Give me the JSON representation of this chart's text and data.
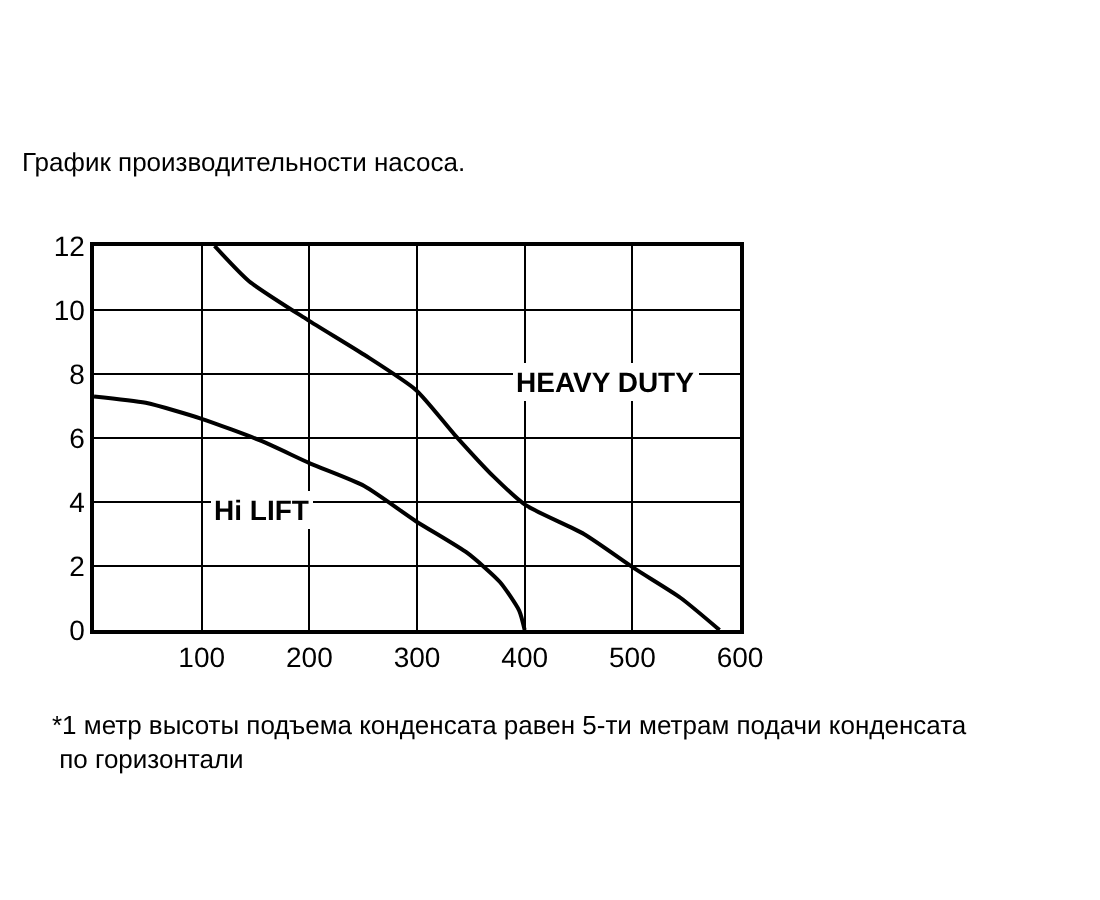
{
  "chart_data": {
    "type": "line",
    "title": "График производительности насоса.",
    "series": [
      {
        "name": "HEAVY DUTY",
        "color": "#000000",
        "x": [
          112,
          144,
          198,
          251,
          299,
          335,
          371,
          401,
          455,
          503,
          545,
          581
        ],
        "values": [
          12,
          10.9,
          9.7,
          8.6,
          7.5,
          6.1,
          4.8,
          3.9,
          3.0,
          1.9,
          1.0,
          0
        ]
      },
      {
        "name": "Hi LIFT",
        "color": "#000000",
        "x": [
          0,
          48,
          100,
          156,
          201,
          251,
          299,
          347,
          377,
          395,
          400
        ],
        "values": [
          7.3,
          7.1,
          6.6,
          5.9,
          5.2,
          4.5,
          3.4,
          2.4,
          1.5,
          0.6,
          0
        ]
      }
    ],
    "annotations": [
      "*1 метр высоты подъема конденсата равен 5-ти метрам подачи конденсата по горизонтали"
    ],
    "xlim": [
      0,
      600
    ],
    "xticks": [
      100,
      200,
      300,
      400,
      500,
      600
    ],
    "ylim": [
      0,
      12
    ],
    "yticks": [
      0,
      2,
      4,
      6,
      8,
      10,
      12
    ],
    "grid": true,
    "legend": false,
    "marker": "none",
    "line_style": "solid"
  }
}
